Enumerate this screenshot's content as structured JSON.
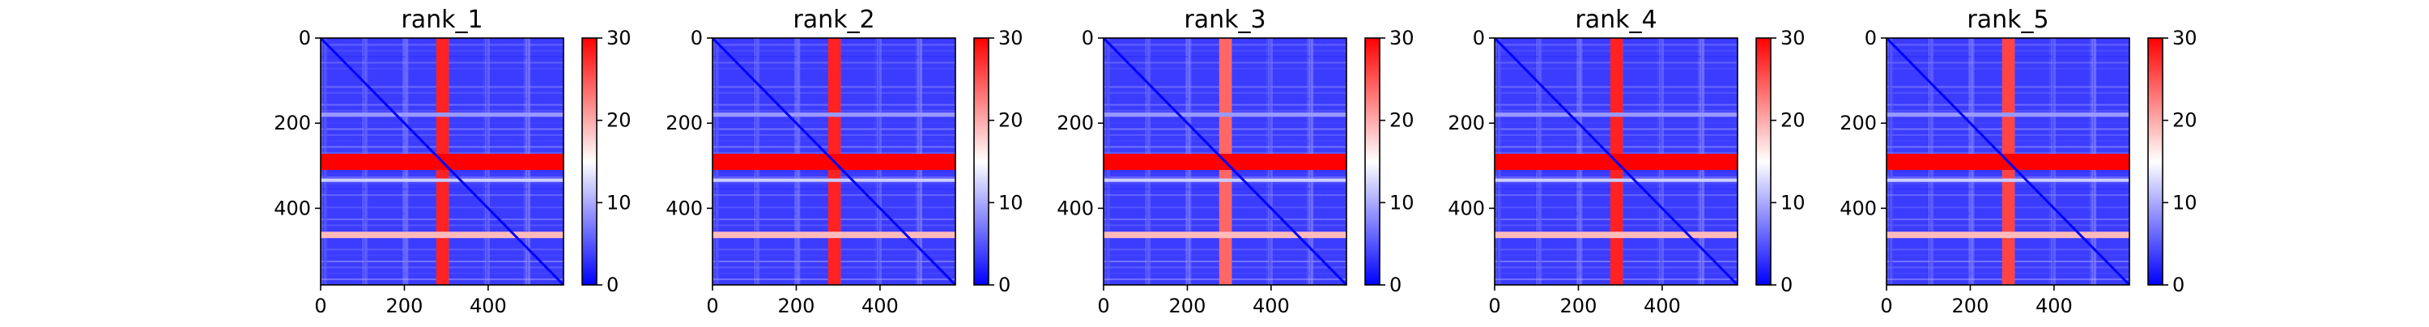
{
  "chart_data": [
    {
      "type": "heatmap",
      "title": "rank_1",
      "x_ticks": [
        0,
        200,
        400
      ],
      "y_ticks": [
        0,
        200,
        400
      ],
      "xlim": [
        0,
        580
      ],
      "ylim": [
        580,
        0
      ],
      "matrix_size": 580,
      "colormap": "bwr",
      "colorbar": {
        "min": 0,
        "max": 30,
        "ticks": [
          0,
          10,
          20,
          30
        ]
      },
      "background_level": 3.5,
      "diagonal_level": 0,
      "bands": [
        {
          "axis": "column",
          "from": 276,
          "to": 306,
          "level": 28
        },
        {
          "axis": "row",
          "from": 272,
          "to": 310,
          "level": 30,
          "col_from": 0,
          "col_to": 290
        },
        {
          "axis": "row",
          "from": 272,
          "to": 310,
          "level": 30,
          "col_from": 290,
          "col_to": 580
        },
        {
          "axis": "row",
          "from": 455,
          "to": 470,
          "level": 19
        },
        {
          "axis": "row",
          "from": 175,
          "to": 185,
          "level": 9
        },
        {
          "axis": "row",
          "from": 330,
          "to": 338,
          "level": 12
        }
      ]
    },
    {
      "type": "heatmap",
      "title": "rank_2",
      "x_ticks": [
        0,
        200,
        400
      ],
      "y_ticks": [
        0,
        200,
        400
      ],
      "xlim": [
        0,
        580
      ],
      "ylim": [
        580,
        0
      ],
      "matrix_size": 580,
      "colormap": "bwr",
      "colorbar": {
        "min": 0,
        "max": 30,
        "ticks": [
          0,
          10,
          20,
          30
        ]
      },
      "background_level": 3.5,
      "diagonal_level": 0,
      "bands": [
        {
          "axis": "column",
          "from": 276,
          "to": 306,
          "level": 28
        },
        {
          "axis": "row",
          "from": 272,
          "to": 310,
          "level": 30,
          "col_from": 0,
          "col_to": 290
        },
        {
          "axis": "row",
          "from": 272,
          "to": 310,
          "level": 30,
          "col_from": 290,
          "col_to": 580
        },
        {
          "axis": "row",
          "from": 455,
          "to": 470,
          "level": 19
        },
        {
          "axis": "row",
          "from": 175,
          "to": 185,
          "level": 9
        },
        {
          "axis": "row",
          "from": 330,
          "to": 338,
          "level": 12
        }
      ]
    },
    {
      "type": "heatmap",
      "title": "rank_3",
      "x_ticks": [
        0,
        200,
        400
      ],
      "y_ticks": [
        0,
        200,
        400
      ],
      "xlim": [
        0,
        580
      ],
      "ylim": [
        580,
        0
      ],
      "matrix_size": 580,
      "colormap": "bwr",
      "colorbar": {
        "min": 0,
        "max": 30,
        "ticks": [
          0,
          10,
          20,
          30
        ]
      },
      "background_level": 3.5,
      "diagonal_level": 0,
      "bands": [
        {
          "axis": "column",
          "from": 276,
          "to": 306,
          "level": 24
        },
        {
          "axis": "row",
          "from": 272,
          "to": 310,
          "level": 30,
          "col_from": 0,
          "col_to": 290
        },
        {
          "axis": "row",
          "from": 272,
          "to": 310,
          "level": 30,
          "col_from": 290,
          "col_to": 580
        },
        {
          "axis": "row",
          "from": 455,
          "to": 470,
          "level": 19
        },
        {
          "axis": "row",
          "from": 175,
          "to": 185,
          "level": 9
        },
        {
          "axis": "row",
          "from": 330,
          "to": 338,
          "level": 12
        }
      ]
    },
    {
      "type": "heatmap",
      "title": "rank_4",
      "x_ticks": [
        0,
        200,
        400
      ],
      "y_ticks": [
        0,
        200,
        400
      ],
      "xlim": [
        0,
        580
      ],
      "ylim": [
        580,
        0
      ],
      "matrix_size": 580,
      "colormap": "bwr",
      "colorbar": {
        "min": 0,
        "max": 30,
        "ticks": [
          0,
          10,
          20,
          30
        ]
      },
      "background_level": 3.5,
      "diagonal_level": 0,
      "bands": [
        {
          "axis": "column",
          "from": 276,
          "to": 306,
          "level": 28
        },
        {
          "axis": "row",
          "from": 272,
          "to": 310,
          "level": 30,
          "col_from": 0,
          "col_to": 290
        },
        {
          "axis": "row",
          "from": 272,
          "to": 310,
          "level": 30,
          "col_from": 290,
          "col_to": 580
        },
        {
          "axis": "row",
          "from": 455,
          "to": 470,
          "level": 19
        },
        {
          "axis": "row",
          "from": 175,
          "to": 185,
          "level": 9
        },
        {
          "axis": "row",
          "from": 330,
          "to": 338,
          "level": 12
        }
      ]
    },
    {
      "type": "heatmap",
      "title": "rank_5",
      "x_ticks": [
        0,
        200,
        400
      ],
      "y_ticks": [
        0,
        200,
        400
      ],
      "xlim": [
        0,
        580
      ],
      "ylim": [
        580,
        0
      ],
      "matrix_size": 580,
      "colormap": "bwr",
      "colorbar": {
        "min": 0,
        "max": 30,
        "ticks": [
          0,
          10,
          20,
          30
        ]
      },
      "background_level": 3.5,
      "diagonal_level": 0,
      "bands": [
        {
          "axis": "column",
          "from": 276,
          "to": 306,
          "level": 26
        },
        {
          "axis": "row",
          "from": 272,
          "to": 310,
          "level": 30,
          "col_from": 0,
          "col_to": 290
        },
        {
          "axis": "row",
          "from": 272,
          "to": 310,
          "level": 30,
          "col_from": 290,
          "col_to": 580
        },
        {
          "axis": "row",
          "from": 455,
          "to": 470,
          "level": 19
        },
        {
          "axis": "row",
          "from": 175,
          "to": 185,
          "level": 9
        },
        {
          "axis": "row",
          "from": 330,
          "to": 338,
          "level": 12
        }
      ]
    }
  ],
  "colors": {
    "low": "#0000ff",
    "mid": "#ffffff",
    "high": "#ff0000",
    "axis": "#000000"
  }
}
